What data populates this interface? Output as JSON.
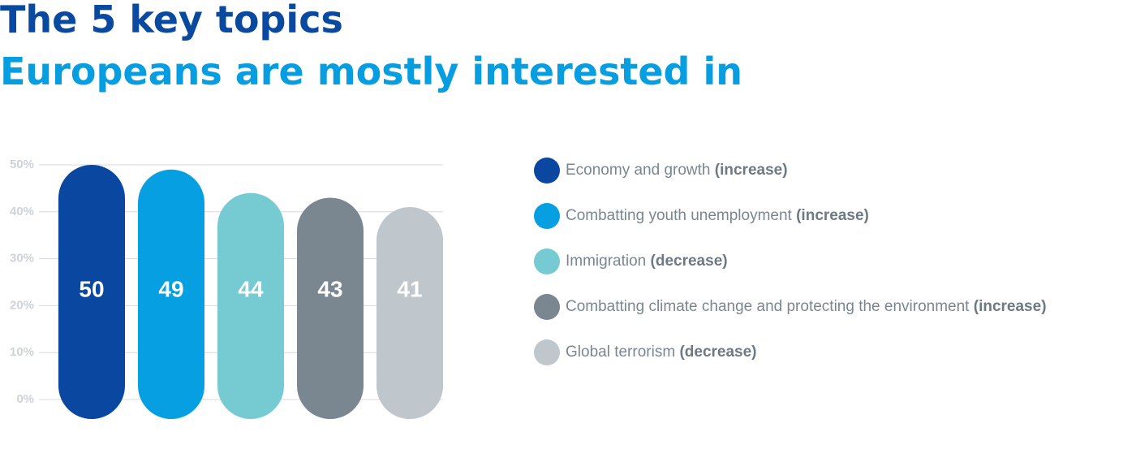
{
  "chart_data": {
    "type": "bar",
    "title": "The 5 key topics",
    "subtitle": "Europeans are mostly interested in",
    "categories": [
      "Economy and growth",
      "Combatting youth unemployment",
      "Immigration",
      "Combatting climate change and protecting the environment",
      "Global terrorism"
    ],
    "trends": [
      "(increase)",
      "(increase)",
      "(decrease)",
      "(increase)",
      "(decrease)"
    ],
    "values": [
      50,
      49,
      44,
      43,
      41
    ],
    "colors": [
      "#0a47a0",
      "#069fe1",
      "#76cbd3",
      "#7a8690",
      "#c0c7cc"
    ],
    "ylim": [
      0,
      50
    ],
    "yticks": [
      {
        "value": 0,
        "label": "0%"
      },
      {
        "value": 10,
        "label": "10%"
      },
      {
        "value": 20,
        "label": "20%"
      },
      {
        "value": 30,
        "label": "30%"
      },
      {
        "value": 40,
        "label": "40%"
      },
      {
        "value": 50,
        "label": "50%"
      }
    ],
    "grid": true
  }
}
